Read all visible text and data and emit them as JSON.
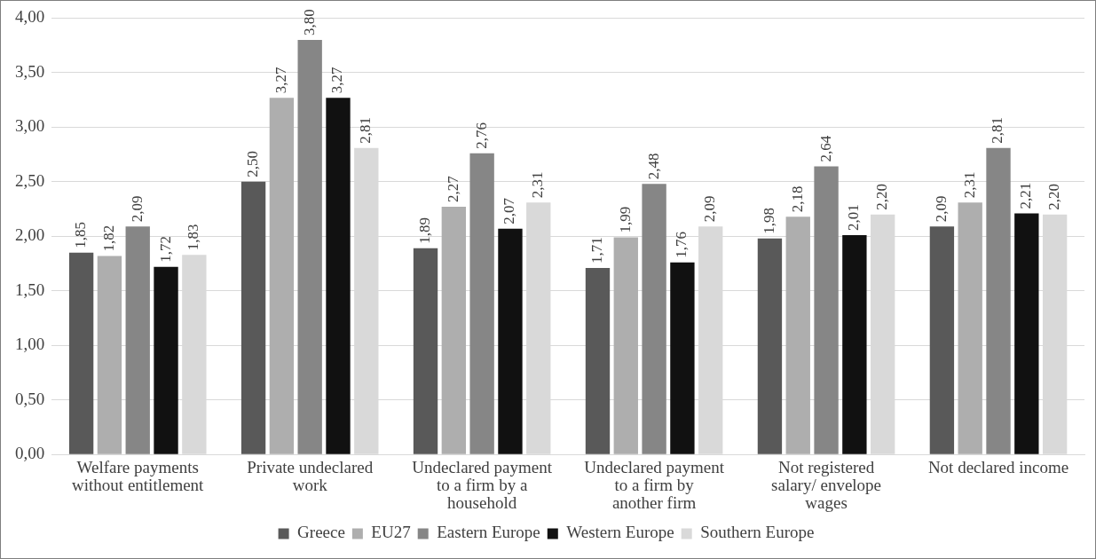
{
  "chart_data": {
    "type": "bar",
    "categories": [
      "Welfare payments without entitlement",
      "Private undeclared work",
      "Undeclared payment to a firm by a household",
      "Undeclared payment to a firm by another firm",
      "Not registered salary/ envelope wages",
      "Not declared income"
    ],
    "series": [
      {
        "name": "Greece",
        "color": "#595959",
        "values": [
          1.85,
          2.5,
          1.89,
          1.71,
          1.98,
          2.09
        ],
        "value_labels": [
          "1,85",
          "2,50",
          "1,89",
          "1,71",
          "1,98",
          "2,09"
        ]
      },
      {
        "name": "EU27",
        "color": "#aeaeae",
        "values": [
          1.82,
          3.27,
          2.27,
          1.99,
          2.18,
          2.31
        ],
        "value_labels": [
          "1,82",
          "3,27",
          "2,27",
          "1,99",
          "2,18",
          "2,31"
        ]
      },
      {
        "name": "Eastern Europe",
        "color": "#868686",
        "values": [
          2.09,
          3.8,
          2.76,
          2.48,
          2.64,
          2.81
        ],
        "value_labels": [
          "2,09",
          "3,80",
          "2,76",
          "2,48",
          "2,64",
          "2,81"
        ]
      },
      {
        "name": "Western Europe",
        "color": "#111111",
        "values": [
          1.72,
          3.27,
          2.07,
          1.76,
          2.01,
          2.21
        ],
        "value_labels": [
          "1,72",
          "3,27",
          "2,07",
          "1,76",
          "2,01",
          "2,21"
        ]
      },
      {
        "name": "Southern Europe",
        "color": "#d9d9d9",
        "values": [
          1.83,
          2.81,
          2.31,
          2.09,
          2.2,
          2.2
        ],
        "value_labels": [
          "1,83",
          "2,81",
          "2,31",
          "2,09",
          "2,20",
          "2,20"
        ]
      }
    ],
    "ylim": [
      0,
      4
    ],
    "yticks": [
      {
        "value": 0,
        "label": "0,00"
      },
      {
        "value": 0.5,
        "label": "0,50"
      },
      {
        "value": 1,
        "label": "1,00"
      },
      {
        "value": 1.5,
        "label": "1,50"
      },
      {
        "value": 2,
        "label": "2,00"
      },
      {
        "value": 2.5,
        "label": "2,50"
      },
      {
        "value": 3,
        "label": "3,00"
      },
      {
        "value": 3.5,
        "label": "3,50"
      },
      {
        "value": 4,
        "label": "4,00"
      }
    ],
    "grid": "y",
    "legend": "bottom"
  }
}
